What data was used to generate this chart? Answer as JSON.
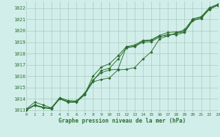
{
  "title": "Graphe pression niveau de la mer (hPa)",
  "bg_color": "#d1eeea",
  "grid_color": "#aac8c0",
  "line_color": "#2d6e30",
  "xlim": [
    0,
    23
  ],
  "ylim": [
    1012.8,
    1022.6
  ],
  "yticks": [
    1013,
    1014,
    1015,
    1016,
    1017,
    1018,
    1019,
    1020,
    1021,
    1022
  ],
  "xticks": [
    0,
    1,
    2,
    3,
    4,
    5,
    6,
    7,
    8,
    9,
    10,
    11,
    12,
    13,
    14,
    15,
    16,
    17,
    18,
    19,
    20,
    21,
    22,
    23
  ],
  "series": [
    [
      1013.1,
      1013.7,
      1013.45,
      1013.2,
      1014.1,
      1013.85,
      1013.8,
      1014.5,
      1015.65,
      1016.3,
      1016.55,
      1016.6,
      1018.55,
      1018.65,
      1019.1,
      1019.15,
      1019.55,
      1019.55,
      1019.8,
      1020.1,
      1021.05,
      1021.2,
      1021.95,
      1022.3
    ],
    [
      1013.05,
      1013.45,
      1013.25,
      1013.15,
      1014.05,
      1013.75,
      1013.75,
      1014.4,
      1015.55,
      1016.5,
      1016.7,
      1017.5,
      1018.5,
      1018.6,
      1019.0,
      1019.05,
      1019.45,
      1019.7,
      1019.65,
      1019.85,
      1020.95,
      1021.1,
      1021.9,
      1022.25
    ],
    [
      1013.0,
      1013.4,
      1013.2,
      1013.1,
      1014.0,
      1013.7,
      1013.7,
      1014.35,
      1016.0,
      1016.8,
      1017.1,
      1017.8,
      1018.6,
      1018.75,
      1019.15,
      1019.2,
      1019.6,
      1019.85,
      1019.9,
      1019.95,
      1021.05,
      1021.25,
      1022.05,
      1022.35
    ],
    [
      1013.05,
      1013.45,
      1013.25,
      1013.15,
      1014.0,
      1013.7,
      1013.7,
      1014.35,
      1015.5,
      1015.7,
      1015.85,
      1016.55,
      1016.6,
      1016.75,
      1017.5,
      1018.15,
      1019.3,
      1019.55,
      1019.8,
      1019.9,
      1020.9,
      1021.1,
      1021.95,
      1022.25
    ]
  ]
}
